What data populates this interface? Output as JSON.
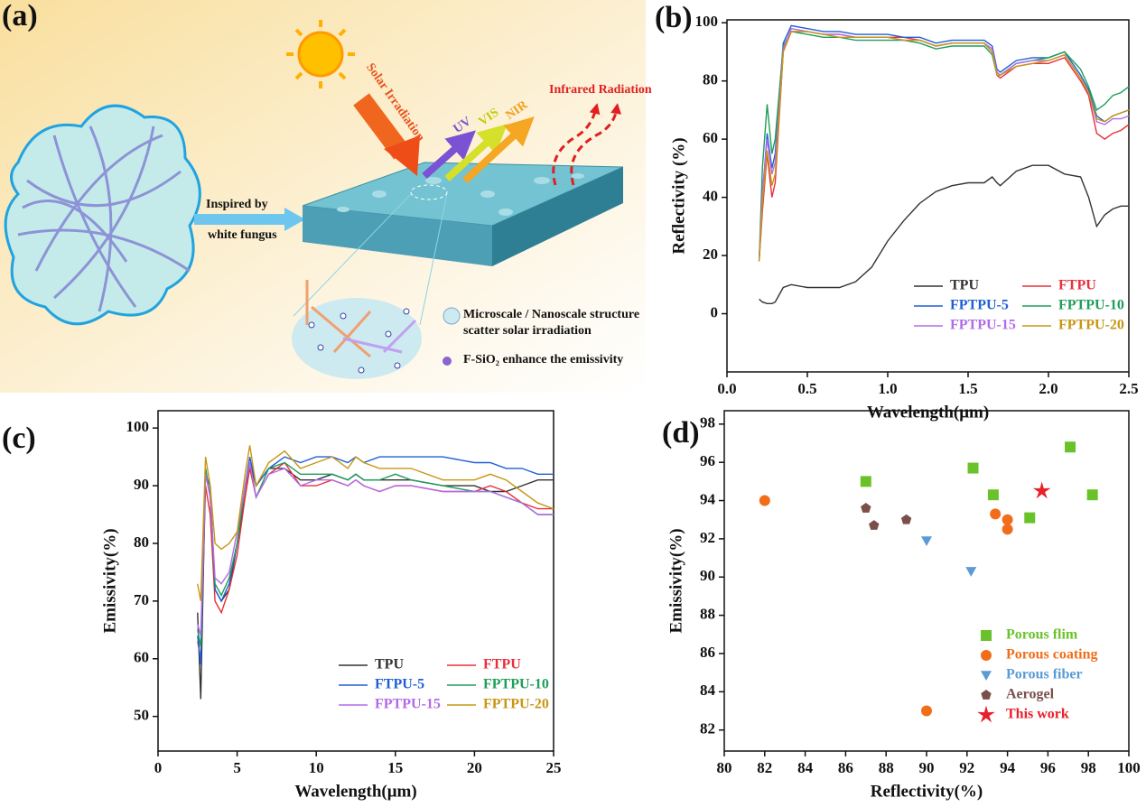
{
  "diagram": {
    "panel_label": "(a)",
    "solar": "Solar Irradiation",
    "uv": "UV",
    "vis": "VIS",
    "nir": "NIR",
    "infrared": "Infrared Radiation",
    "inspired": [
      "Inspired by",
      "white fungus"
    ],
    "structure": [
      "Microscale / Nanoscale structure",
      "scatter solar irradiation"
    ],
    "emissivity": "F-SiO₂ enhance the emissivity"
  },
  "chart_data": [
    {
      "type": "line",
      "panel_label": "(b)",
      "x_label": "Wavelength(μm)",
      "y_label": "Reflectivity (%)",
      "xlim": [
        0,
        2.5
      ],
      "ylim": [
        -20,
        101
      ],
      "xticks": [
        {
          "value": 0,
          "label": "0.0"
        },
        0.5,
        {
          "value": 1,
          "label": "1.0"
        },
        1.5,
        {
          "value": 2,
          "label": "2.0"
        },
        2.5
      ],
      "yticks": [
        0,
        20,
        40,
        60,
        80,
        100
      ],
      "legend": "lower right",
      "x": [
        0.2,
        0.22,
        0.25,
        0.28,
        0.3,
        0.35,
        0.4,
        0.5,
        0.6,
        0.7,
        0.8,
        0.9,
        1.0,
        1.1,
        1.2,
        1.3,
        1.4,
        1.5,
        1.6,
        1.65,
        1.68,
        1.7,
        1.8,
        1.9,
        2.0,
        2.1,
        2.2,
        2.25,
        2.3,
        2.35,
        2.4,
        2.45,
        2.5
      ],
      "series": [
        {
          "name": "TPU",
          "color": "#333333",
          "values": [
            5,
            4,
            3.5,
            3.5,
            4,
            9,
            10,
            9,
            9,
            9,
            11,
            16,
            25,
            32,
            38,
            42,
            44,
            45,
            45,
            47,
            45,
            44,
            49,
            51,
            51,
            48,
            47,
            40,
            30,
            34,
            36,
            37,
            37
          ]
        },
        {
          "name": "FTPU",
          "color": "#e8303a",
          "values": [
            18,
            35,
            55,
            40,
            45,
            90,
            97,
            97,
            96,
            96,
            95,
            95,
            95,
            95,
            94,
            92,
            93,
            93,
            93,
            90,
            82,
            81,
            85,
            86,
            86,
            88,
            80,
            75,
            62,
            60,
            62,
            63,
            65
          ]
        },
        {
          "name": "FPTPU-5",
          "color": "#1f5fd6",
          "values": [
            18,
            40,
            62,
            50,
            55,
            93,
            99,
            98,
            97,
            97,
            96,
            96,
            96,
            95,
            95,
            93,
            94,
            94,
            94,
            92,
            84,
            83,
            87,
            88,
            88,
            90,
            82,
            77,
            68,
            66,
            68,
            69,
            70
          ]
        },
        {
          "name": "FPTPU-10",
          "color": "#1e9e5a",
          "values": [
            18,
            50,
            72,
            55,
            60,
            92,
            97,
            96,
            95,
            95,
            94,
            94,
            94,
            94,
            93,
            91,
            92,
            92,
            92,
            89,
            82,
            82,
            86,
            87,
            88,
            90,
            84,
            78,
            70,
            72,
            75,
            76,
            78
          ]
        },
        {
          "name": "FPTPU-15",
          "color": "#b36ae8",
          "values": [
            18,
            42,
            60,
            48,
            52,
            91,
            98,
            97,
            96,
            96,
            95,
            95,
            95,
            94,
            94,
            92,
            93,
            93,
            93,
            91,
            83,
            82,
            86,
            87,
            87,
            89,
            81,
            76,
            66,
            65,
            67,
            67,
            68
          ]
        },
        {
          "name": "FPTPU-20",
          "color": "#c89614",
          "values": [
            18,
            38,
            56,
            44,
            48,
            90,
            97,
            97,
            96,
            95,
            95,
            95,
            95,
            94,
            94,
            92,
            93,
            93,
            93,
            90,
            82,
            82,
            85,
            86,
            87,
            89,
            81,
            76,
            67,
            66,
            68,
            69,
            70
          ]
        }
      ]
    },
    {
      "type": "line",
      "panel_label": "(c)",
      "x_label": "Wavelength(μm)",
      "y_label": "Emissivity(%)",
      "xlim": [
        0,
        25
      ],
      "ylim": [
        44,
        103
      ],
      "xticks": [
        0,
        5,
        10,
        15,
        20,
        25
      ],
      "yticks": [
        50,
        60,
        70,
        80,
        90,
        100
      ],
      "legend": "lower right",
      "x": [
        2.5,
        2.7,
        3,
        3.3,
        3.6,
        4,
        4.5,
        5,
        5.5,
        5.8,
        6.2,
        7,
        8,
        9,
        10,
        11,
        12,
        12.5,
        13,
        14,
        15,
        16,
        18,
        20,
        21,
        22,
        23,
        24,
        25
      ],
      "series": [
        {
          "name": "TPU",
          "color": "#333333",
          "values": [
            68,
            53,
            93,
            88,
            72,
            70,
            72,
            80,
            88,
            94,
            90,
            93,
            93,
            91,
            91,
            92,
            91,
            92,
            91,
            91,
            91,
            91,
            90,
            90,
            89,
            89,
            90,
            91,
            91
          ]
        },
        {
          "name": "FTPU",
          "color": "#e8303a",
          "values": [
            63,
            60,
            90,
            85,
            70,
            68,
            72,
            78,
            88,
            93,
            88,
            92,
            94,
            90,
            90,
            91,
            90,
            91,
            90,
            89,
            90,
            90,
            89,
            89,
            90,
            89,
            87,
            86,
            86
          ]
        },
        {
          "name": "FTPU-5",
          "color": "#1f5fd6",
          "values": [
            64,
            59,
            92,
            90,
            72,
            70,
            73,
            80,
            90,
            95,
            90,
            93,
            95,
            94,
            95,
            95,
            94,
            95,
            94,
            95,
            95,
            95,
            95,
            94,
            94,
            93,
            93,
            92,
            92
          ]
        },
        {
          "name": "FPTPU-10",
          "color": "#1e9e5a",
          "values": [
            65,
            62,
            93,
            88,
            73,
            71,
            74,
            80,
            90,
            94,
            88,
            93,
            94,
            92,
            92,
            92,
            91,
            92,
            91,
            91,
            92,
            91,
            90,
            89,
            89,
            88,
            87,
            85,
            85
          ]
        },
        {
          "name": "FPTPU-15",
          "color": "#b36ae8",
          "values": [
            66,
            64,
            92,
            88,
            74,
            73,
            75,
            82,
            90,
            94,
            88,
            92,
            93,
            90,
            91,
            91,
            90,
            91,
            90,
            89,
            90,
            90,
            89,
            89,
            89,
            88,
            87,
            85,
            85
          ]
        },
        {
          "name": "FPTPU-20",
          "color": "#c89614",
          "values": [
            73,
            70,
            95,
            90,
            80,
            79,
            80,
            82,
            92,
            97,
            90,
            94,
            96,
            93,
            94,
            95,
            93,
            95,
            94,
            93,
            93,
            93,
            91,
            91,
            92,
            91,
            89,
            87,
            86
          ]
        }
      ]
    },
    {
      "type": "scatter",
      "panel_label": "(d)",
      "x_label": "Reflectivity(%)",
      "y_label": "Emissivity(%)",
      "xlim": [
        80,
        100
      ],
      "ylim": [
        80.9,
        98.7
      ],
      "xticks": [
        80,
        82,
        84,
        86,
        88,
        90,
        92,
        94,
        96,
        98,
        100
      ],
      "yticks": [
        82,
        84,
        86,
        88,
        90,
        92,
        94,
        96,
        98
      ],
      "legend": "lower right",
      "series": [
        {
          "name": "Porous flim",
          "color": "#6ac22a",
          "marker": "square",
          "x": [
            87.0,
            92.3,
            93.3,
            95.1,
            97.1,
            98.2
          ],
          "values": [
            95.0,
            95.7,
            94.3,
            93.1,
            96.8,
            94.3
          ]
        },
        {
          "name": "Porous coating",
          "color": "#f26d1a",
          "marker": "circle",
          "x": [
            82,
            90,
            93.4,
            94,
            94
          ],
          "values": [
            94,
            83,
            93.3,
            93,
            92.5
          ]
        },
        {
          "name": "Porous fiber",
          "color": "#5b9bd5",
          "marker": "triangle",
          "x": [
            90,
            92.2
          ],
          "values": [
            91.9,
            90.3
          ]
        },
        {
          "name": "Aerogel",
          "color": "#7a4f4a",
          "marker": "pentagon",
          "x": [
            87,
            87.4,
            89
          ],
          "values": [
            93.6,
            92.7,
            93
          ]
        },
        {
          "name": "This work",
          "color": "#e8202a",
          "marker": "star",
          "x": [
            95.7
          ],
          "values": [
            94.5
          ]
        }
      ]
    }
  ]
}
